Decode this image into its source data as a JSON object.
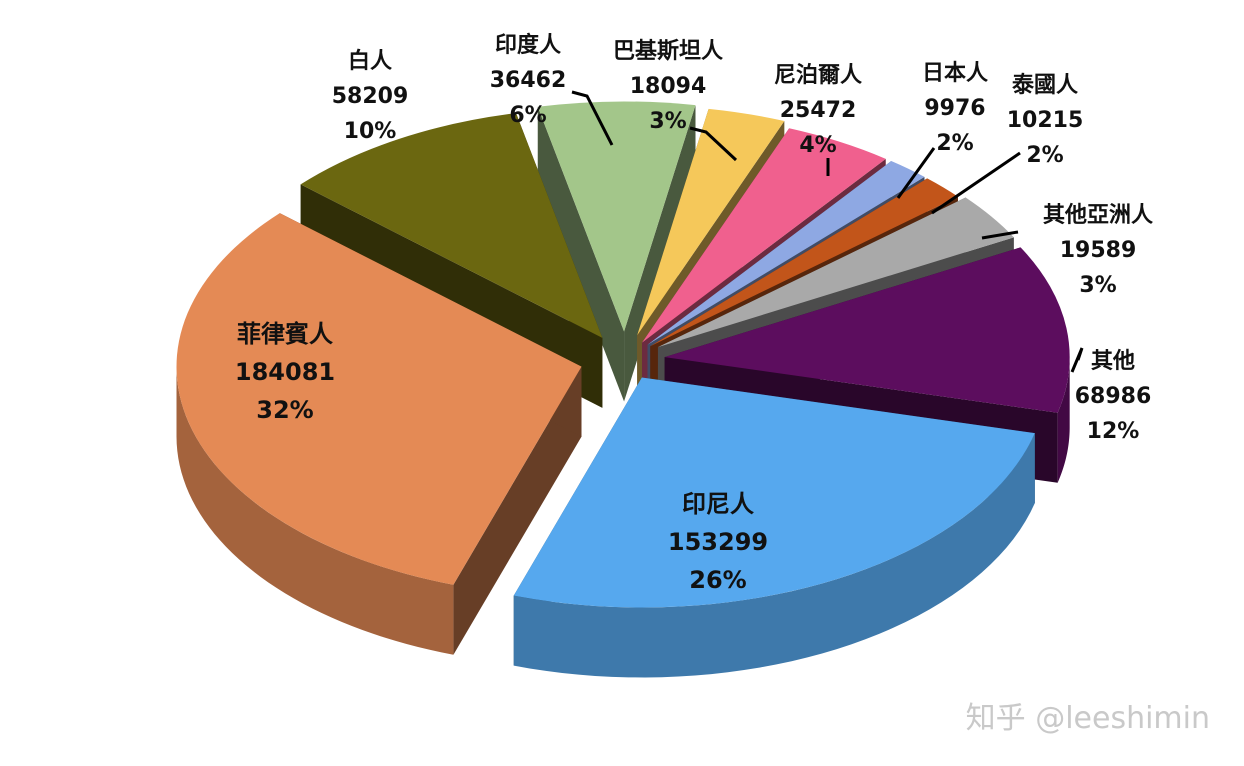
{
  "chart_data": {
    "type": "pie",
    "title": "",
    "legend": "none",
    "exploded": true,
    "three_d": true,
    "slices": [
      {
        "name": "印尼人",
        "value": 153299,
        "percent": "26%",
        "color": "#56a8ee"
      },
      {
        "name": "菲律賓人",
        "value": 184081,
        "percent": "32%",
        "color": "#e48a55"
      },
      {
        "name": "白人",
        "value": 58209,
        "percent": "10%",
        "color": "#6b6710"
      },
      {
        "name": "印度人",
        "value": 36462,
        "percent": "6%",
        "color": "#a3c68a"
      },
      {
        "name": "巴基斯坦人",
        "value": 18094,
        "percent": "3%",
        "color": "#f5c85a"
      },
      {
        "name": "尼泊爾人",
        "value": 25472,
        "percent": "4%",
        "color": "#f0608e"
      },
      {
        "name": "日本人",
        "value": 9976,
        "percent": "2%",
        "color": "#8ea8e3"
      },
      {
        "name": "泰國人",
        "value": 10215,
        "percent": "2%",
        "color": "#c2551a"
      },
      {
        "name": "其他亞洲人",
        "value": 19589,
        "percent": "3%",
        "color": "#a9a9a9"
      },
      {
        "name": "其他",
        "value": 68986,
        "percent": "12%",
        "color": "#5c0d5e"
      }
    ]
  },
  "watermark": "知乎 @leeshimin"
}
